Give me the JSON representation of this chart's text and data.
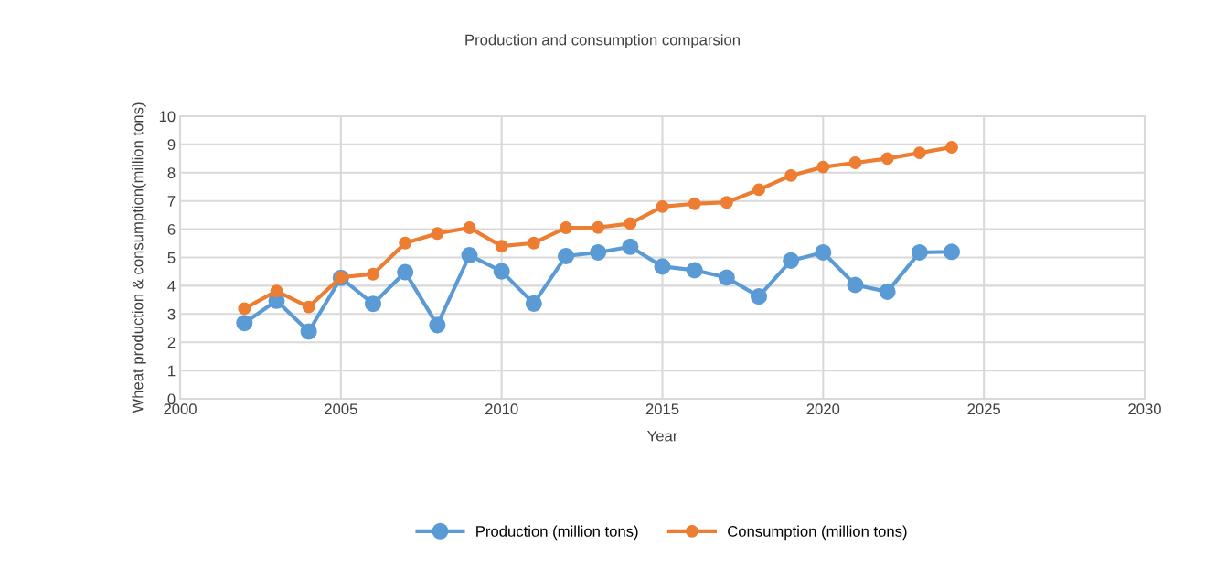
{
  "chart_data": {
    "type": "line",
    "title": "Production and consumption comparsion",
    "xlabel": "Year",
    "ylabel": "Wheat production & consumption(million tons)",
    "x": [
      2002,
      2003,
      2004,
      2005,
      2006,
      2007,
      2008,
      2009,
      2010,
      2011,
      2012,
      2013,
      2014,
      2015,
      2016,
      2017,
      2018,
      2019,
      2020,
      2021,
      2022,
      2023,
      2024
    ],
    "series": [
      {
        "name": "Production (million tons)",
        "color": "#5b9bd5",
        "values": [
          2.68,
          3.47,
          2.38,
          4.28,
          3.36,
          4.48,
          2.61,
          5.08,
          4.51,
          3.37,
          5.05,
          5.18,
          5.38,
          4.68,
          4.55,
          4.29,
          3.62,
          4.89,
          5.18,
          4.03,
          3.79,
          5.18,
          5.2
        ]
      },
      {
        "name": "Consumption (million tons)",
        "color": "#ed7d31",
        "values": [
          3.19,
          3.81,
          3.25,
          4.3,
          4.41,
          5.51,
          5.85,
          6.05,
          5.4,
          5.51,
          6.05,
          6.06,
          6.2,
          6.8,
          6.9,
          6.95,
          7.4,
          7.9,
          8.2,
          8.35,
          8.5,
          8.7,
          8.9
        ]
      }
    ],
    "xlim": [
      2000,
      2030
    ],
    "xticks": [
      2000,
      2005,
      2010,
      2015,
      2020,
      2025,
      2030
    ],
    "ylim": [
      0,
      10
    ],
    "yticks": [
      0,
      1,
      2,
      3,
      4,
      5,
      6,
      7,
      8,
      9,
      10
    ],
    "grid": true,
    "legend": "bottom",
    "marker": "circle",
    "line_style": "solid"
  }
}
